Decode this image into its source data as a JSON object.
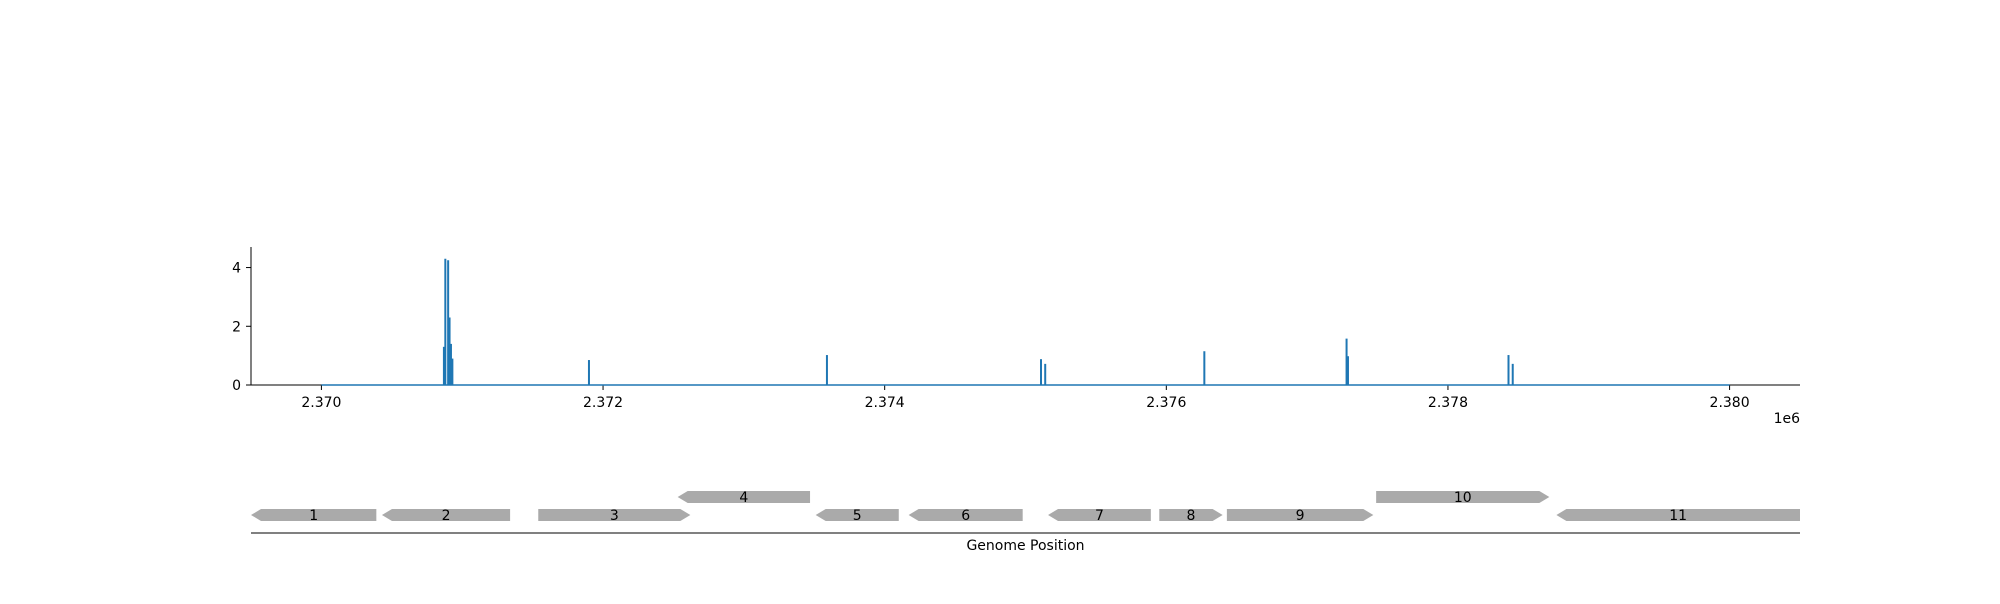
{
  "chart_data": [
    {
      "type": "line",
      "title": "",
      "xlabel": "",
      "ylabel": "",
      "x_offset_label": "1e6",
      "xlim": [
        2.3695,
        2.3805
      ],
      "ylim": [
        0,
        4.7
      ],
      "x_ticks": [
        2.37,
        2.372,
        2.374,
        2.376,
        2.378,
        2.38
      ],
      "x_tick_labels": [
        "2.370",
        "2.372",
        "2.374",
        "2.376",
        "2.378",
        "2.380"
      ],
      "y_ticks": [
        0,
        2,
        4
      ],
      "y_tick_labels": [
        "0",
        "2",
        "4"
      ],
      "grid": false,
      "color": "#1f77b4",
      "baseline": {
        "x": [
          2.37,
          2.38
        ],
        "y": [
          0,
          0
        ]
      },
      "series": [
        {
          "peaks": [
            {
              "x": 2.37087,
              "y": 1.3
            },
            {
              "x": 2.37088,
              "y": 4.3
            },
            {
              "x": 2.3709,
              "y": 4.25
            },
            {
              "x": 2.37091,
              "y": 2.3
            },
            {
              "x": 2.37092,
              "y": 1.4
            },
            {
              "x": 2.37093,
              "y": 0.9
            },
            {
              "x": 2.3719,
              "y": 0.85
            },
            {
              "x": 2.37359,
              "y": 1.02
            },
            {
              "x": 2.37511,
              "y": 0.88
            },
            {
              "x": 2.37514,
              "y": 0.72
            },
            {
              "x": 2.37627,
              "y": 1.15
            },
            {
              "x": 2.37728,
              "y": 1.58
            },
            {
              "x": 2.37729,
              "y": 0.98
            },
            {
              "x": 2.37843,
              "y": 1.02
            },
            {
              "x": 2.37846,
              "y": 0.72
            }
          ]
        }
      ]
    },
    {
      "type": "gene-track",
      "xlabel": "Genome Position",
      "xlim": [
        2.3695,
        2.3805
      ],
      "gene_color": "#aaaaaa",
      "genes": [
        {
          "label": "1",
          "start": 2.3695,
          "end": 2.37039,
          "strand": "-",
          "row": 0
        },
        {
          "label": "2",
          "start": 2.37043,
          "end": 2.37134,
          "strand": "-",
          "row": 0
        },
        {
          "label": "3",
          "start": 2.37154,
          "end": 2.37262,
          "strand": "+",
          "row": 0
        },
        {
          "label": "4",
          "start": 2.37253,
          "end": 2.37347,
          "strand": "-",
          "row": 1
        },
        {
          "label": "5",
          "start": 2.37351,
          "end": 2.3741,
          "strand": "-",
          "row": 0
        },
        {
          "label": "6",
          "start": 2.37417,
          "end": 2.37498,
          "strand": "-",
          "row": 0
        },
        {
          "label": "7",
          "start": 2.37516,
          "end": 2.37589,
          "strand": "-",
          "row": 0
        },
        {
          "label": "8",
          "start": 2.37595,
          "end": 2.3764,
          "strand": "+",
          "row": 0
        },
        {
          "label": "9",
          "start": 2.37643,
          "end": 2.37747,
          "strand": "+",
          "row": 0
        },
        {
          "label": "10",
          "start": 2.37749,
          "end": 2.37872,
          "strand": "+",
          "row": 1
        },
        {
          "label": "11",
          "start": 2.37877,
          "end": 2.3805,
          "strand": "-",
          "row": 0
        }
      ]
    }
  ]
}
